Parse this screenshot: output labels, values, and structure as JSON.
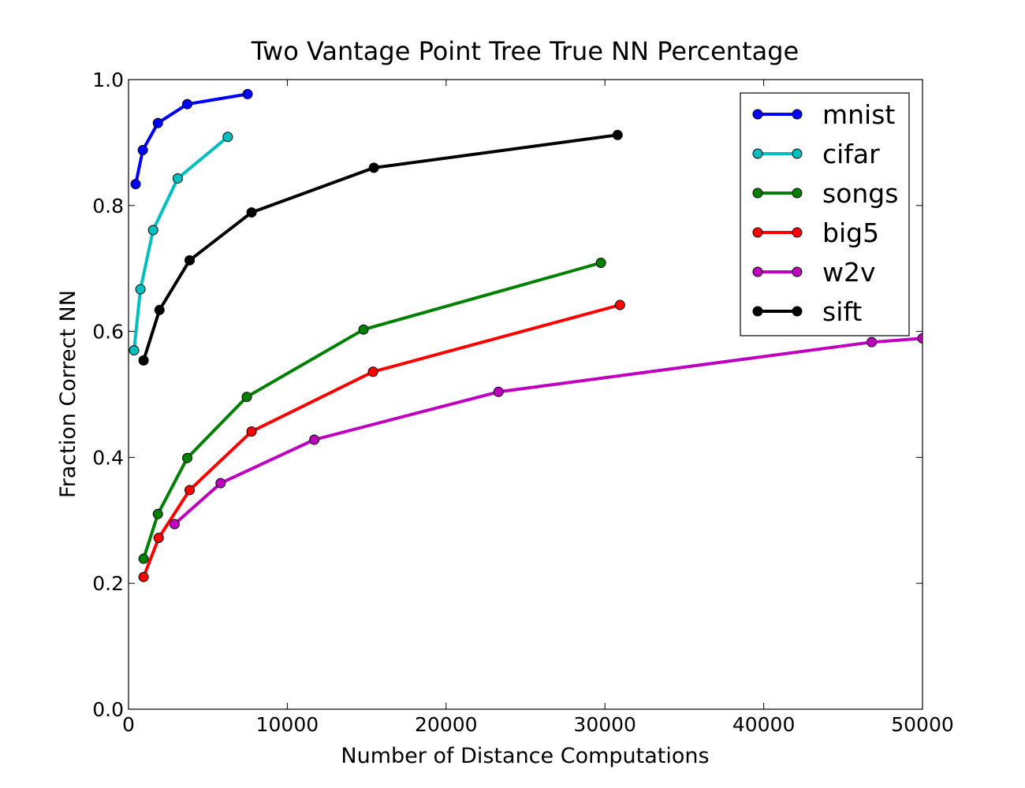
{
  "chart_data": {
    "type": "line",
    "title": "Two Vantage Point Tree True NN Percentage",
    "xlabel": "Number of Distance Computations",
    "ylabel": "Fraction Correct NN",
    "xlim": [
      0,
      50000
    ],
    "ylim": [
      0.0,
      1.0
    ],
    "xticks": [
      0,
      10000,
      20000,
      30000,
      40000,
      50000
    ],
    "xtick_labels": [
      "0",
      "10000",
      "20000",
      "30000",
      "40000",
      "50000"
    ],
    "yticks": [
      0.0,
      0.2,
      0.4,
      0.6,
      0.8,
      1.0
    ],
    "ytick_labels": [
      "0.0",
      "0.2",
      "0.4",
      "0.6",
      "0.8",
      "1.0"
    ],
    "grid": false,
    "legend_position": "top-right",
    "series": [
      {
        "name": "mnist",
        "color": "#0000ff",
        "x": [
          450,
          900,
          1850,
          3700,
          7500
        ],
        "y": [
          0.834,
          0.888,
          0.931,
          0.961,
          0.977
        ]
      },
      {
        "name": "cifar",
        "color": "#00bfbf",
        "x": [
          350,
          750,
          1550,
          3100,
          6250
        ],
        "y": [
          0.57,
          0.667,
          0.761,
          0.843,
          0.909
        ]
      },
      {
        "name": "songs",
        "color": "#008000",
        "x": [
          950,
          1850,
          3700,
          7450,
          14800,
          29750
        ],
        "y": [
          0.239,
          0.31,
          0.399,
          0.496,
          0.603,
          0.709
        ]
      },
      {
        "name": "big5",
        "color": "#ff0000",
        "x": [
          950,
          1900,
          3850,
          7750,
          15400,
          30950
        ],
        "y": [
          0.21,
          0.272,
          0.348,
          0.441,
          0.536,
          0.642
        ]
      },
      {
        "name": "w2v",
        "color": "#bf00bf",
        "x": [
          2900,
          5800,
          11700,
          23300,
          46800,
          50000
        ],
        "y": [
          0.294,
          0.359,
          0.428,
          0.504,
          0.583,
          0.589
        ]
      },
      {
        "name": "sift",
        "color": "#000000",
        "x": [
          950,
          1950,
          3850,
          7750,
          15450,
          30800
        ],
        "y": [
          0.554,
          0.634,
          0.713,
          0.789,
          0.86,
          0.912
        ]
      }
    ]
  }
}
